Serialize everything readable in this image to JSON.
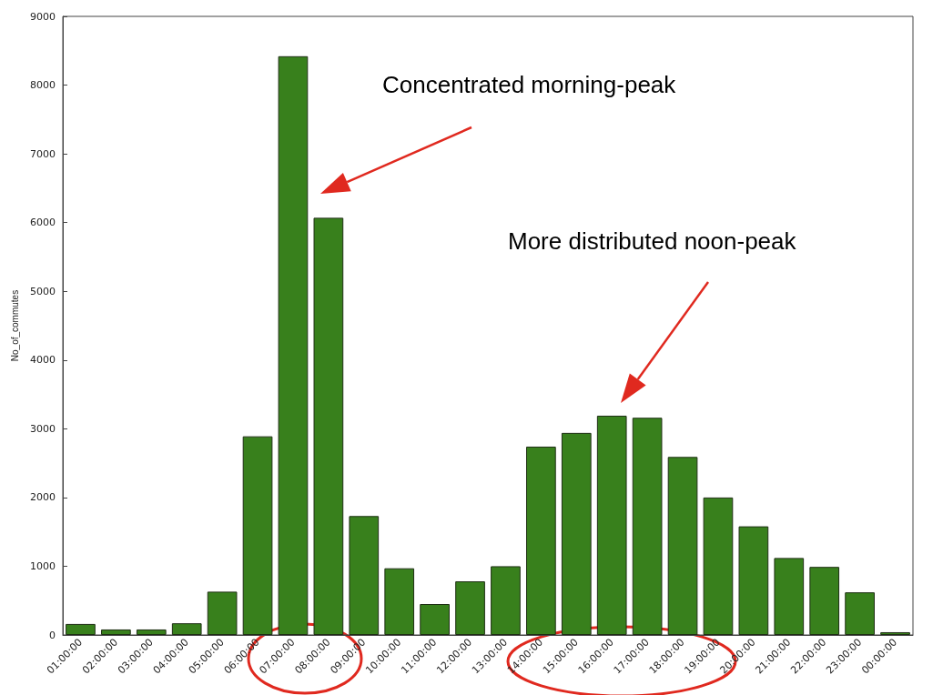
{
  "chart_data": {
    "type": "bar",
    "ylabel": "No_of_commutes",
    "categories": [
      "01:00:00",
      "02:00:00",
      "03:00:00",
      "04:00:00",
      "05:00:00",
      "06:00:00",
      "07:00:00",
      "08:00:00",
      "09:00:00",
      "10:00:00",
      "11:00:00",
      "12:00:00",
      "13:00:00",
      "14:00:00",
      "15:00:00",
      "16:00:00",
      "17:00:00",
      "18:00:00",
      "19:00:00",
      "20:00:00",
      "21:00:00",
      "22:00:00",
      "23:00:00",
      "00:00:00"
    ],
    "values": [
      160,
      80,
      80,
      170,
      630,
      2890,
      8420,
      6070,
      1730,
      970,
      450,
      780,
      1000,
      2740,
      2940,
      3190,
      3160,
      2590,
      2000,
      1580,
      1120,
      990,
      620,
      40
    ],
    "color": "#38801c",
    "ylim": [
      0,
      9000
    ],
    "yticks": [
      0,
      1000,
      2000,
      3000,
      4000,
      5000,
      6000,
      7000,
      8000,
      9000
    ],
    "grid": false,
    "annotations": [
      "Concentrated morning-peak",
      "More distributed noon-peak"
    ]
  }
}
